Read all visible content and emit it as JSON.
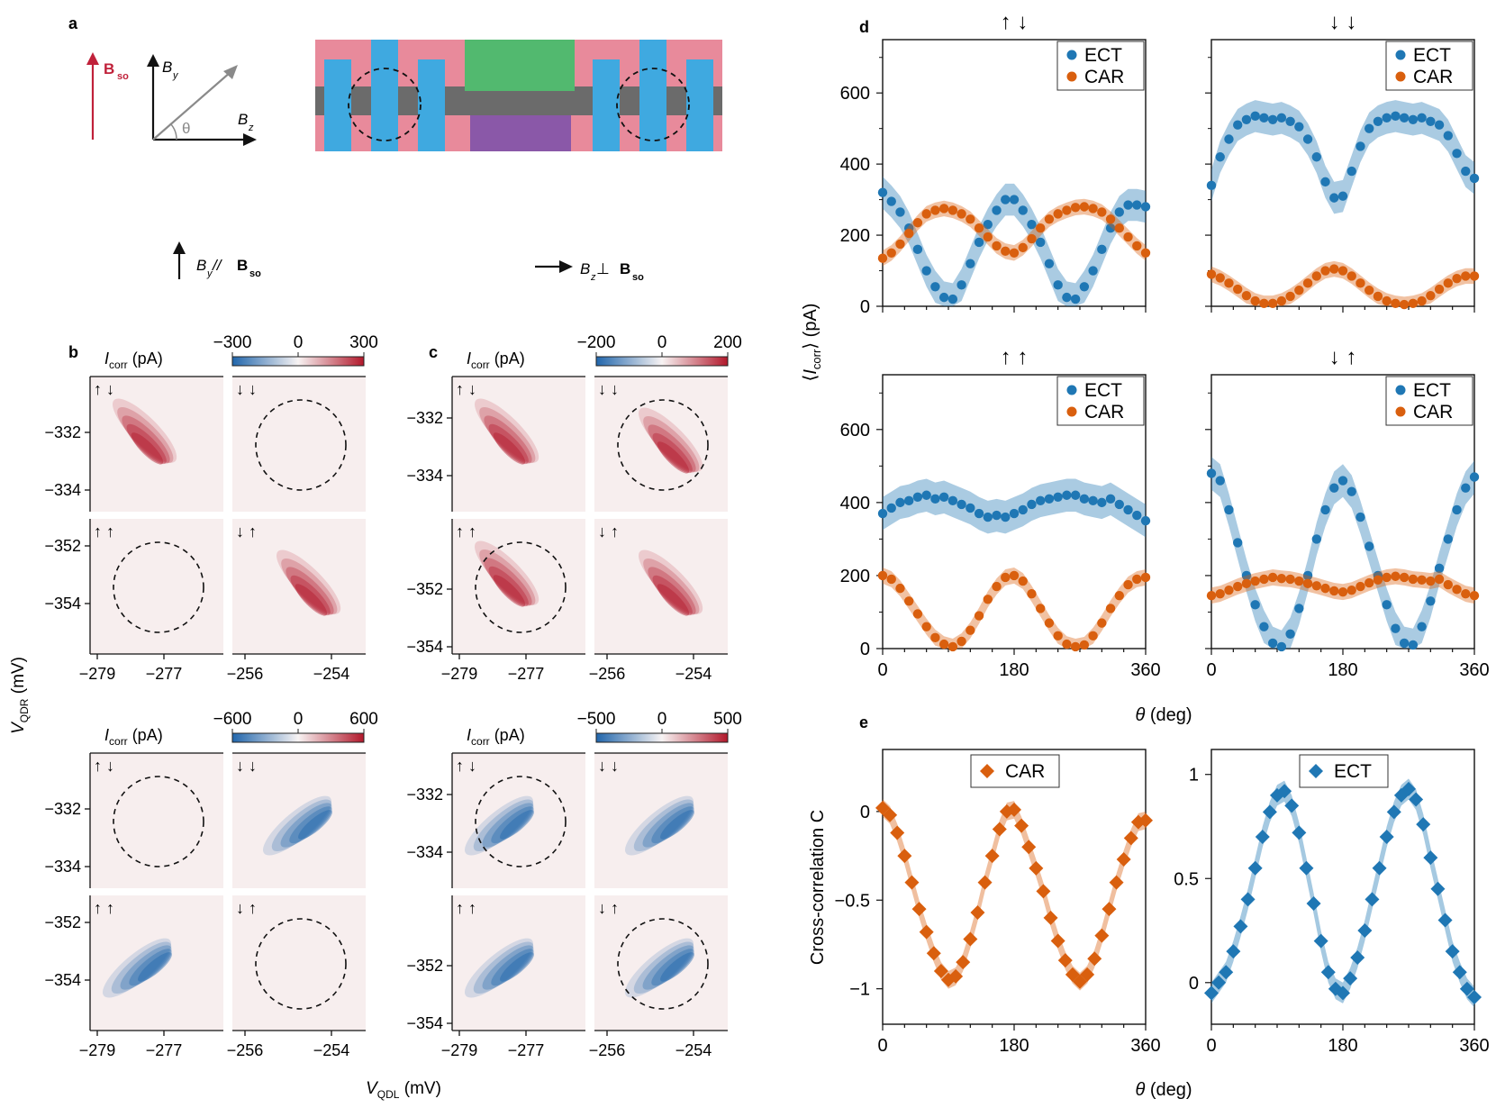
{
  "panel_letters": {
    "a": "a",
    "b": "b",
    "c": "c",
    "d": "d",
    "e": "e"
  },
  "colors": {
    "ect": "#1f77b4",
    "car": "#d95f0e",
    "red": "#b2182b",
    "blue": "#2166ac",
    "pink": "#e88a9b",
    "gray": "#6b6b6b",
    "cyan": "#3fa9e0",
    "green": "#52b96f",
    "purple": "#8a58a8",
    "dark_red": "#c0213a"
  },
  "schematic": {
    "bso_label": "B",
    "bso_sub": "so",
    "by_label": "B",
    "by_sub": "y",
    "bz_label": "B",
    "bz_sub": "z",
    "theta_label": "θ",
    "parallel_caption": {
      "b": "B",
      "bsub": "y",
      "rel": " // ",
      "r": "B",
      "rsub": "so"
    },
    "perp_caption": {
      "b": "B",
      "bsub": "z",
      "rel": " ⊥ ",
      "r": "B",
      "rsub": "so"
    }
  },
  "maps": {
    "icorr_label": "I",
    "icorr_sub": "corr",
    "icorr_unit": " (pA)",
    "y_axis_label": "V",
    "y_axis_sub": "QDR",
    "y_axis_unit": " (mV)",
    "x_axis_label": "V",
    "x_axis_sub": "QDL",
    "x_axis_unit": " (mV)",
    "spin_labels": [
      "↑ ↓",
      "↓ ↓",
      "↑ ↑",
      "↓ ↑"
    ],
    "quadrants": [
      {
        "id": "b-top",
        "colorbar_ticks": [
          "−300",
          "0",
          "300"
        ],
        "sign": "red",
        "circled": [
          1,
          2
        ]
      },
      {
        "id": "c-top",
        "colorbar_ticks": [
          "−200",
          "0",
          "200"
        ],
        "sign": "red",
        "circled": [
          1,
          2
        ]
      },
      {
        "id": "b-bottom",
        "colorbar_ticks": [
          "−600",
          "0",
          "600"
        ],
        "sign": "blue",
        "circled": [
          0,
          3
        ]
      },
      {
        "id": "c-bottom",
        "colorbar_ticks": [
          "−500",
          "0",
          "500"
        ],
        "sign": "blue",
        "circled": [
          0,
          3
        ]
      }
    ],
    "ytick_upper": [
      "−332",
      "−334"
    ],
    "ytick_lower": [
      "−352",
      "−354"
    ],
    "xtick_left": [
      "−279",
      "−277"
    ],
    "xtick_right": [
      "−256",
      "−254"
    ]
  },
  "chart_data": [
    {
      "type": "scatter",
      "panel": "d",
      "ylabel": "⟨I_corr⟩ (pA)",
      "xlabel": "θ (deg)",
      "xlim": [
        0,
        360
      ],
      "ylim": [
        0,
        750
      ],
      "xticks": [
        0,
        180,
        360
      ],
      "yticks": [
        0,
        200,
        400,
        600
      ],
      "subplots": [
        {
          "title": "↑ ↓",
          "legend": [
            "ECT",
            "CAR"
          ],
          "series": [
            {
              "name": "ECT",
              "x": [
                0,
                12,
                24,
                36,
                48,
                60,
                72,
                84,
                96,
                108,
                120,
                132,
                144,
                156,
                168,
                180,
                192,
                204,
                216,
                228,
                240,
                252,
                264,
                276,
                288,
                300,
                312,
                324,
                336,
                348,
                360
              ],
              "values": [
                320,
                295,
                265,
                220,
                160,
                100,
                55,
                25,
                20,
                60,
                120,
                180,
                230,
                270,
                300,
                300,
                270,
                230,
                180,
                120,
                60,
                25,
                20,
                55,
                100,
                160,
                220,
                265,
                285,
                285,
                280
              ]
            },
            {
              "name": "CAR",
              "x": [
                0,
                12,
                24,
                36,
                48,
                60,
                72,
                84,
                96,
                108,
                120,
                132,
                144,
                156,
                168,
                180,
                192,
                204,
                216,
                228,
                240,
                252,
                264,
                276,
                288,
                300,
                312,
                324,
                336,
                348,
                360
              ],
              "values": [
                135,
                150,
                175,
                205,
                235,
                260,
                270,
                275,
                270,
                260,
                245,
                220,
                195,
                170,
                155,
                150,
                165,
                190,
                220,
                245,
                260,
                270,
                278,
                280,
                275,
                265,
                245,
                220,
                195,
                170,
                150
              ]
            }
          ]
        },
        {
          "title": "↓ ↓",
          "legend": [
            "ECT",
            "CAR"
          ],
          "series": [
            {
              "name": "ECT",
              "x": [
                0,
                12,
                24,
                36,
                48,
                60,
                72,
                84,
                96,
                108,
                120,
                132,
                144,
                156,
                168,
                180,
                192,
                204,
                216,
                228,
                240,
                252,
                264,
                276,
                288,
                300,
                312,
                324,
                336,
                348,
                360
              ],
              "values": [
                340,
                420,
                470,
                510,
                525,
                535,
                530,
                525,
                530,
                520,
                505,
                470,
                420,
                350,
                305,
                310,
                380,
                450,
                500,
                520,
                530,
                535,
                530,
                525,
                530,
                520,
                510,
                480,
                430,
                380,
                360
              ]
            },
            {
              "name": "CAR",
              "x": [
                0,
                12,
                24,
                36,
                48,
                60,
                72,
                84,
                96,
                108,
                120,
                132,
                144,
                156,
                168,
                180,
                192,
                204,
                216,
                228,
                240,
                252,
                264,
                276,
                288,
                300,
                312,
                324,
                336,
                348,
                360
              ],
              "values": [
                90,
                80,
                65,
                48,
                30,
                15,
                8,
                8,
                15,
                28,
                45,
                65,
                85,
                100,
                105,
                100,
                85,
                65,
                45,
                28,
                15,
                8,
                5,
                8,
                15,
                30,
                48,
                65,
                78,
                85,
                85
              ]
            }
          ]
        },
        {
          "title": "↑ ↑",
          "legend": [
            "ECT",
            "CAR"
          ],
          "series": [
            {
              "name": "ECT",
              "x": [
                0,
                12,
                24,
                36,
                48,
                60,
                72,
                84,
                96,
                108,
                120,
                132,
                144,
                156,
                168,
                180,
                192,
                204,
                216,
                228,
                240,
                252,
                264,
                276,
                288,
                300,
                312,
                324,
                336,
                348,
                360
              ],
              "values": [
                370,
                385,
                400,
                405,
                415,
                420,
                410,
                415,
                405,
                395,
                385,
                370,
                360,
                365,
                360,
                370,
                380,
                395,
                405,
                410,
                415,
                420,
                420,
                410,
                405,
                400,
                410,
                395,
                380,
                365,
                350
              ]
            },
            {
              "name": "CAR",
              "x": [
                0,
                12,
                24,
                36,
                48,
                60,
                72,
                84,
                96,
                108,
                120,
                132,
                144,
                156,
                168,
                180,
                192,
                204,
                216,
                228,
                240,
                252,
                264,
                276,
                288,
                300,
                312,
                324,
                336,
                348,
                360
              ],
              "values": [
                200,
                190,
                165,
                130,
                95,
                60,
                30,
                12,
                5,
                20,
                50,
                90,
                135,
                170,
                195,
                200,
                185,
                150,
                110,
                70,
                35,
                12,
                5,
                10,
                35,
                70,
                110,
                145,
                175,
                190,
                195
              ]
            }
          ]
        },
        {
          "title": "↓ ↑",
          "legend": [
            "ECT",
            "CAR"
          ],
          "series": [
            {
              "name": "ECT",
              "x": [
                0,
                12,
                24,
                36,
                48,
                60,
                72,
                84,
                96,
                108,
                120,
                132,
                144,
                156,
                168,
                180,
                192,
                204,
                216,
                228,
                240,
                252,
                264,
                276,
                288,
                300,
                312,
                324,
                336,
                348,
                360
              ],
              "values": [
                480,
                460,
                380,
                290,
                200,
                120,
                60,
                15,
                5,
                40,
                110,
                200,
                300,
                380,
                440,
                460,
                430,
                360,
                280,
                200,
                120,
                55,
                15,
                10,
                60,
                130,
                220,
                300,
                380,
                440,
                470
              ]
            },
            {
              "name": "CAR",
              "x": [
                0,
                12,
                24,
                36,
                48,
                60,
                72,
                84,
                96,
                108,
                120,
                132,
                144,
                156,
                168,
                180,
                192,
                204,
                216,
                228,
                240,
                252,
                264,
                276,
                288,
                300,
                312,
                324,
                336,
                348,
                360
              ],
              "values": [
                145,
                150,
                160,
                170,
                178,
                185,
                190,
                195,
                192,
                190,
                185,
                178,
                172,
                165,
                158,
                155,
                160,
                170,
                180,
                188,
                195,
                198,
                195,
                190,
                188,
                185,
                190,
                175,
                162,
                150,
                145
              ]
            }
          ]
        }
      ]
    },
    {
      "type": "line",
      "panel": "e",
      "ylabel": "Cross-correlation C",
      "xlabel": "θ (deg)",
      "xlim": [
        0,
        360
      ],
      "xticks": [
        0,
        180,
        360
      ],
      "subplots": [
        {
          "legend": [
            "CAR"
          ],
          "ylim": [
            -1.2,
            0.35
          ],
          "yticks": [
            0,
            -0.5,
            -1
          ],
          "ytick_labels": [
            "0",
            "−0.5",
            "−1"
          ],
          "series": [
            {
              "name": "CAR",
              "x": [
                0,
                10,
                20,
                30,
                40,
                50,
                60,
                70,
                80,
                90,
                100,
                110,
                120,
                130,
                140,
                150,
                160,
                170,
                180,
                190,
                200,
                210,
                220,
                230,
                240,
                250,
                260,
                270,
                280,
                290,
                300,
                310,
                320,
                330,
                340,
                350,
                360
              ],
              "values": [
                0.02,
                -0.02,
                -0.12,
                -0.25,
                -0.4,
                -0.55,
                -0.68,
                -0.8,
                -0.9,
                -0.95,
                -0.93,
                -0.85,
                -0.72,
                -0.57,
                -0.4,
                -0.25,
                -0.1,
                0.0,
                0.01,
                -0.08,
                -0.2,
                -0.32,
                -0.45,
                -0.6,
                -0.73,
                -0.84,
                -0.92,
                -0.96,
                -0.92,
                -0.83,
                -0.7,
                -0.55,
                -0.4,
                -0.27,
                -0.15,
                -0.06,
                -0.05
              ]
            }
          ]
        },
        {
          "legend": [
            "ECT"
          ],
          "ylim": [
            -0.2,
            1.12
          ],
          "yticks": [
            0,
            0.5,
            1
          ],
          "ytick_labels": [
            "0",
            "0.5",
            "1"
          ],
          "series": [
            {
              "name": "ECT",
              "x": [
                0,
                10,
                20,
                30,
                40,
                50,
                60,
                70,
                80,
                90,
                100,
                110,
                120,
                130,
                140,
                150,
                160,
                170,
                180,
                190,
                200,
                210,
                220,
                230,
                240,
                250,
                260,
                270,
                280,
                290,
                300,
                310,
                320,
                330,
                340,
                350,
                360
              ],
              "values": [
                -0.05,
                0.0,
                0.05,
                0.15,
                0.27,
                0.4,
                0.55,
                0.7,
                0.82,
                0.9,
                0.92,
                0.85,
                0.72,
                0.55,
                0.38,
                0.2,
                0.05,
                -0.03,
                -0.05,
                0.02,
                0.12,
                0.25,
                0.4,
                0.55,
                0.7,
                0.82,
                0.9,
                0.93,
                0.88,
                0.76,
                0.6,
                0.45,
                0.3,
                0.15,
                0.05,
                -0.03,
                -0.07
              ]
            }
          ]
        }
      ]
    }
  ]
}
